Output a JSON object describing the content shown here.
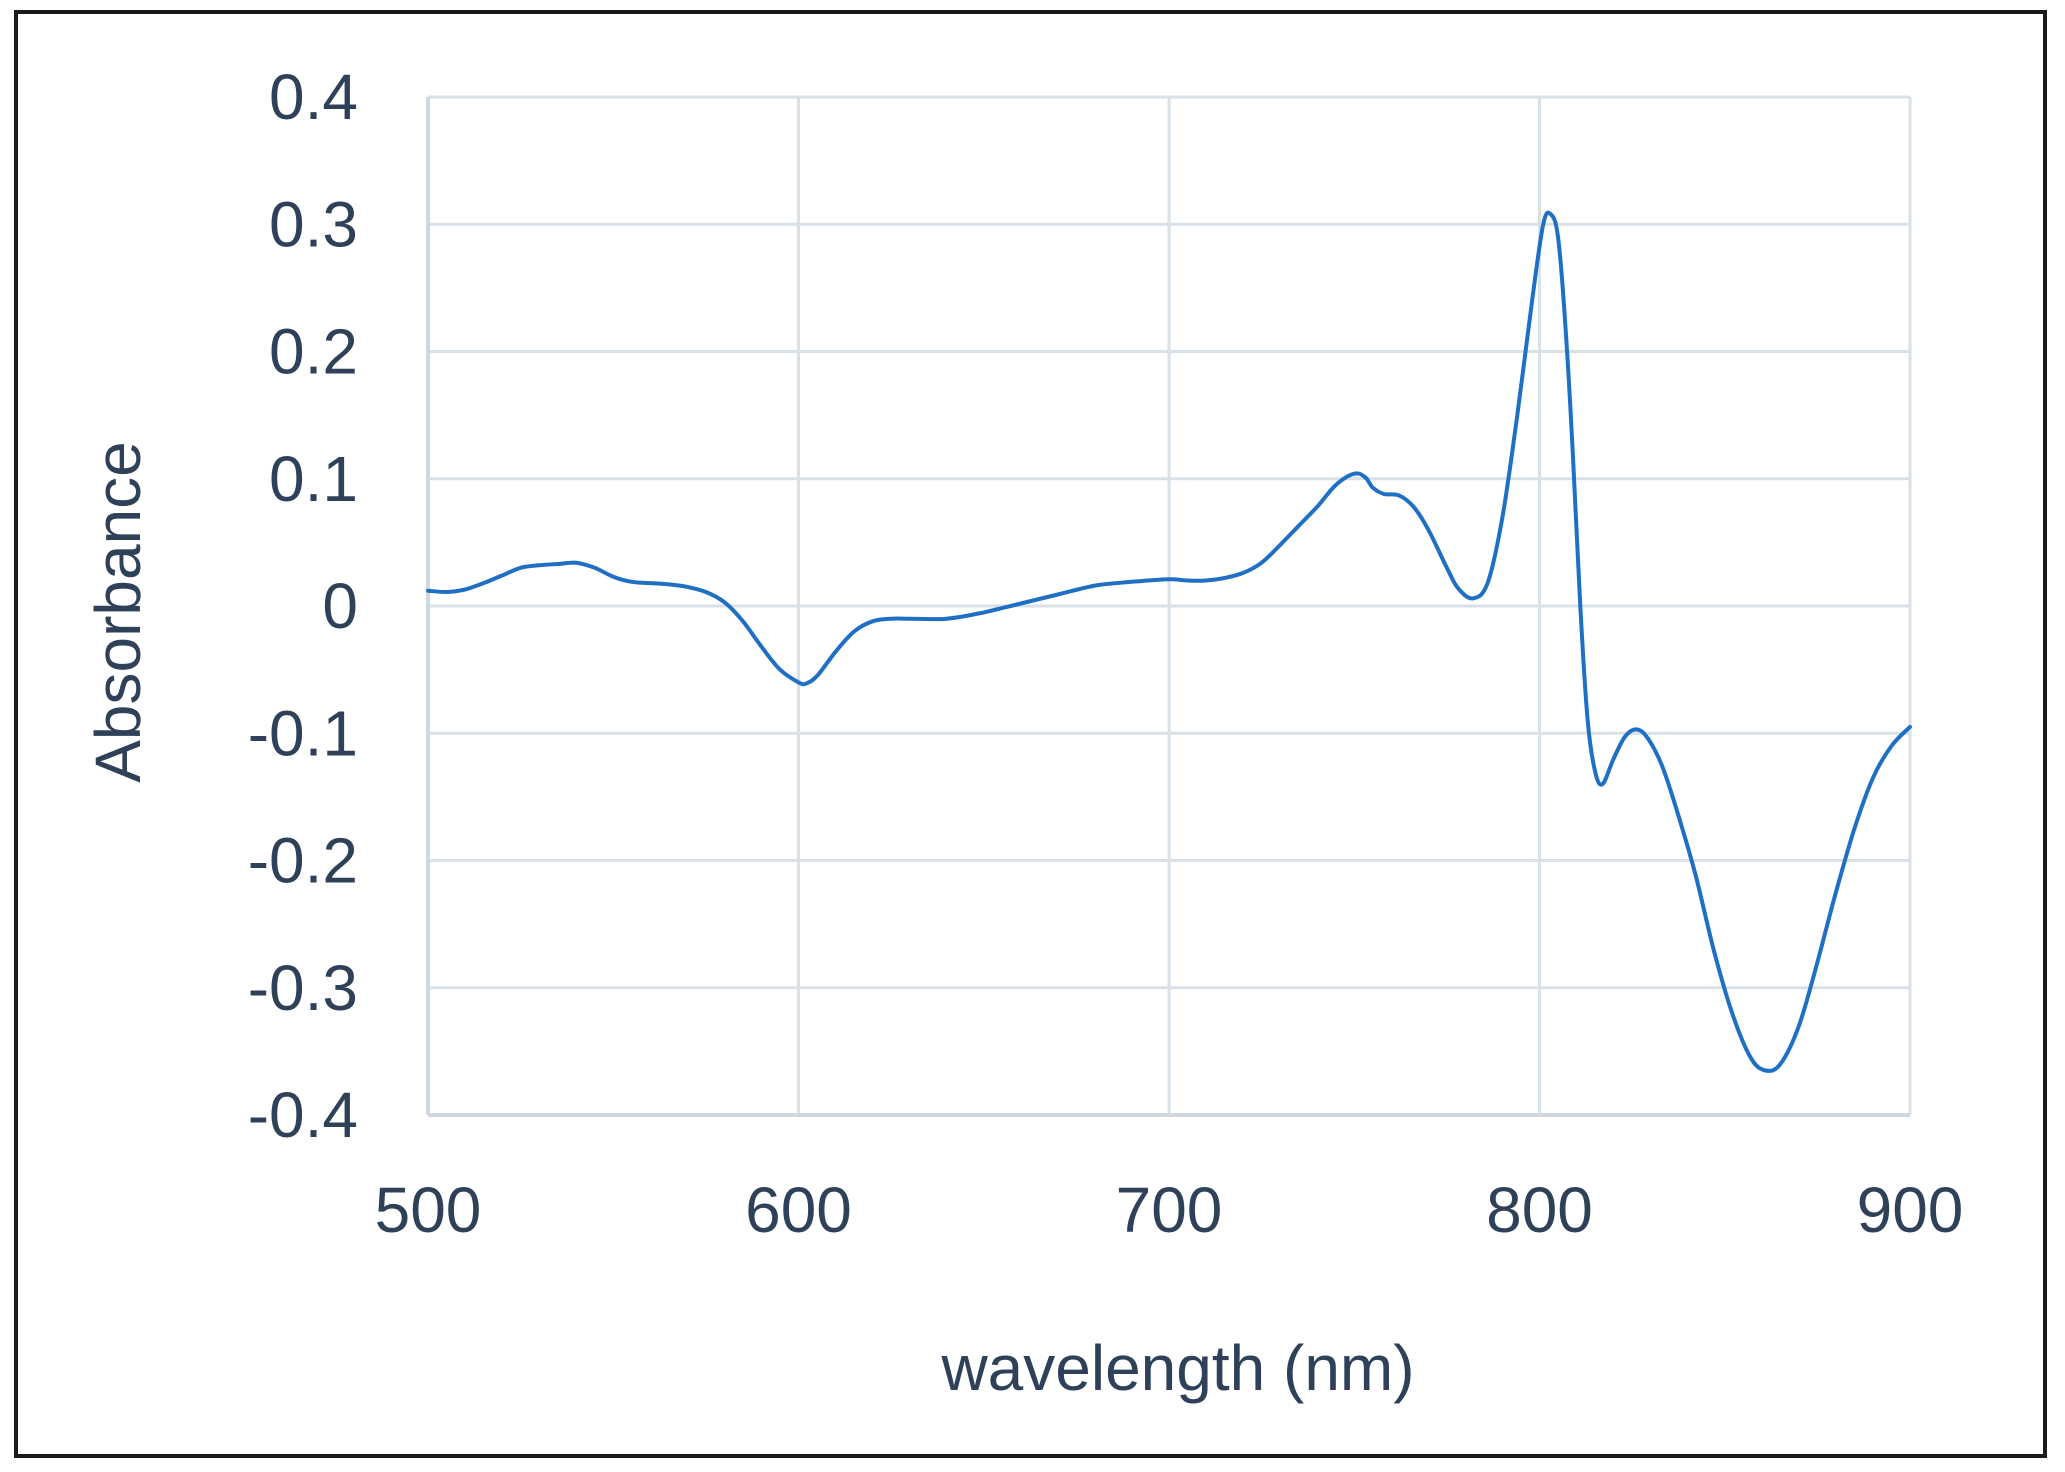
{
  "chart_data": {
    "type": "line",
    "xlabel": "wavelength (nm)",
    "ylabel": "Absorbance",
    "xlim": [
      500,
      900
    ],
    "ylim": [
      -0.4,
      0.4
    ],
    "x_ticks": [
      500,
      600,
      700,
      800,
      900
    ],
    "x_tick_labels": [
      "500",
      "600",
      "700",
      "800",
      "900"
    ],
    "y_ticks": [
      0.4,
      0.3,
      0.2,
      0.1,
      0,
      -0.1,
      -0.2,
      -0.3,
      -0.4
    ],
    "y_tick_labels": [
      "0.4",
      "0.3",
      "0.2",
      "0.1",
      "0",
      "-0.1",
      "-0.2",
      "-0.3",
      "-0.4"
    ],
    "grid": true,
    "legend": "none",
    "series": [
      {
        "color": "#1f6fc5",
        "points": [
          [
            500,
            0.012
          ],
          [
            505,
            0.011
          ],
          [
            510,
            0.013
          ],
          [
            515,
            0.018
          ],
          [
            520,
            0.024
          ],
          [
            525,
            0.03
          ],
          [
            530,
            0.032
          ],
          [
            535,
            0.033
          ],
          [
            540,
            0.034
          ],
          [
            545,
            0.03
          ],
          [
            550,
            0.023
          ],
          [
            555,
            0.019
          ],
          [
            560,
            0.018
          ],
          [
            565,
            0.017
          ],
          [
            570,
            0.015
          ],
          [
            575,
            0.011
          ],
          [
            580,
            0.003
          ],
          [
            585,
            -0.012
          ],
          [
            590,
            -0.032
          ],
          [
            595,
            -0.05
          ],
          [
            600,
            -0.06
          ],
          [
            602,
            -0.061
          ],
          [
            605,
            -0.055
          ],
          [
            610,
            -0.036
          ],
          [
            615,
            -0.02
          ],
          [
            620,
            -0.012
          ],
          [
            625,
            -0.01
          ],
          [
            630,
            -0.01
          ],
          [
            640,
            -0.01
          ],
          [
            650,
            -0.005
          ],
          [
            660,
            0.002
          ],
          [
            670,
            0.009
          ],
          [
            680,
            0.016
          ],
          [
            690,
            0.019
          ],
          [
            700,
            0.021
          ],
          [
            705,
            0.02
          ],
          [
            710,
            0.02
          ],
          [
            715,
            0.022
          ],
          [
            720,
            0.026
          ],
          [
            725,
            0.034
          ],
          [
            730,
            0.048
          ],
          [
            735,
            0.063
          ],
          [
            740,
            0.078
          ],
          [
            745,
            0.095
          ],
          [
            750,
            0.104
          ],
          [
            753,
            0.101
          ],
          [
            755,
            0.093
          ],
          [
            758,
            0.088
          ],
          [
            762,
            0.087
          ],
          [
            766,
            0.078
          ],
          [
            770,
            0.06
          ],
          [
            775,
            0.03
          ],
          [
            778,
            0.014
          ],
          [
            782,
            0.006
          ],
          [
            786,
            0.018
          ],
          [
            790,
            0.07
          ],
          [
            794,
            0.15
          ],
          [
            798,
            0.24
          ],
          [
            801,
            0.3
          ],
          [
            803,
            0.308
          ],
          [
            805,
            0.29
          ],
          [
            807,
            0.22
          ],
          [
            809,
            0.12
          ],
          [
            811,
            0.0
          ],
          [
            813,
            -0.09
          ],
          [
            815,
            -0.13
          ],
          [
            817,
            -0.14
          ],
          [
            820,
            -0.12
          ],
          [
            823,
            -0.103
          ],
          [
            826,
            -0.097
          ],
          [
            829,
            -0.103
          ],
          [
            833,
            -0.125
          ],
          [
            837,
            -0.16
          ],
          [
            842,
            -0.21
          ],
          [
            847,
            -0.27
          ],
          [
            852,
            -0.32
          ],
          [
            857,
            -0.355
          ],
          [
            861,
            -0.365
          ],
          [
            865,
            -0.36
          ],
          [
            870,
            -0.33
          ],
          [
            875,
            -0.28
          ],
          [
            880,
            -0.225
          ],
          [
            885,
            -0.175
          ],
          [
            890,
            -0.135
          ],
          [
            895,
            -0.11
          ],
          [
            900,
            -0.095
          ]
        ]
      }
    ]
  }
}
